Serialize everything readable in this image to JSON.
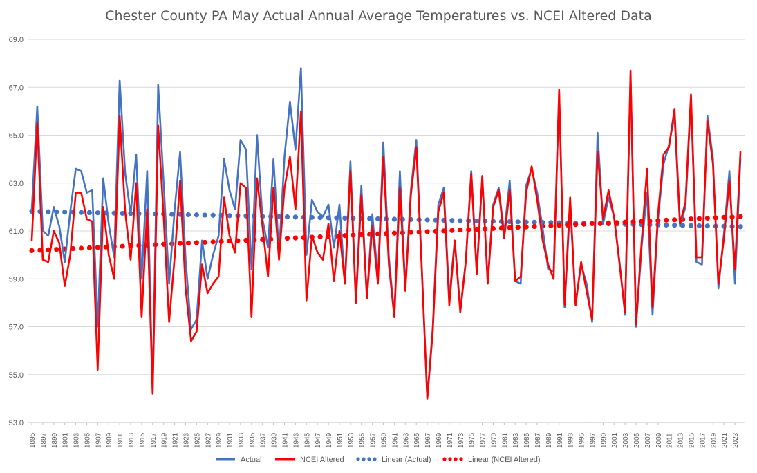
{
  "chart_data": {
    "type": "line",
    "title": "Chester County PA May Actual Annual Average Temperatures vs. NCEI Altered Data",
    "xlabel": "",
    "ylabel": "",
    "ylim": [
      53.0,
      69.0
    ],
    "yticks": [
      "53.0",
      "55.0",
      "57.0",
      "59.0",
      "61.0",
      "63.0",
      "65.0",
      "67.0",
      "69.0"
    ],
    "x_start": 1895,
    "x_end": 2024,
    "xticks": [
      "1895",
      "1897",
      "1899",
      "1901",
      "1903",
      "1905",
      "1907",
      "1909",
      "1911",
      "1913",
      "1915",
      "1917",
      "1919",
      "1921",
      "1923",
      "1925",
      "1927",
      "1929",
      "1931",
      "1933",
      "1935",
      "1937",
      "1939",
      "1941",
      "1943",
      "1945",
      "1947",
      "1949",
      "1951",
      "1953",
      "1955",
      "1957",
      "1959",
      "1961",
      "1963",
      "1965",
      "1967",
      "1969",
      "1971",
      "1973",
      "1975",
      "1977",
      "1979",
      "1981",
      "1983",
      "1985",
      "1987",
      "1989",
      "1991",
      "1993",
      "1995",
      "1997",
      "1999",
      "2001",
      "2003",
      "2005",
      "2007",
      "2009",
      "2011",
      "2013",
      "2015",
      "2017",
      "2019",
      "2021",
      "2023"
    ],
    "grid": "horizontal",
    "legend_position": "bottom",
    "colors": {
      "actual": "#4472C4",
      "altered": "#FF0000"
    },
    "series": [
      {
        "name": "Actual",
        "key": "actual",
        "style": "solid",
        "values": [
          61.9,
          66.2,
          61.0,
          60.8,
          62.0,
          61.2,
          59.7,
          61.8,
          63.6,
          63.5,
          62.6,
          62.7,
          57.0,
          63.2,
          61.3,
          59.9,
          67.3,
          63.4,
          61.7,
          64.2,
          59.0,
          63.5,
          54.3,
          67.1,
          63.0,
          58.8,
          61.9,
          64.3,
          59.8,
          56.9,
          57.3,
          60.6,
          59.0,
          60.0,
          60.8,
          64.0,
          62.7,
          61.9,
          64.8,
          64.4,
          59.4,
          65.0,
          61.5,
          60.3,
          64.0,
          60.0,
          64.1,
          66.4,
          64.4,
          67.8,
          60.0,
          62.3,
          61.8,
          61.6,
          62.1,
          60.3,
          62.1,
          58.8,
          63.9,
          58.1,
          62.9,
          58.2,
          61.7,
          59.0,
          64.7,
          59.9,
          57.5,
          63.5,
          58.6,
          62.7,
          64.8,
          59.5,
          54.0,
          57.0,
          62.1,
          62.8,
          58.2,
          60.6,
          57.7,
          59.7,
          63.5,
          59.3,
          63.2,
          58.9,
          62.1,
          62.8,
          60.9,
          63.1,
          58.9,
          58.8,
          62.9,
          63.6,
          62.6,
          61.1,
          59.4,
          59.3,
          66.8,
          57.8,
          62.1,
          58.0,
          59.6,
          58.8,
          57.2,
          65.1,
          61.3,
          62.4,
          61.6,
          59.7,
          57.5,
          67.5,
          57.0,
          60.3,
          62.6,
          57.5,
          61.5,
          63.8,
          64.6,
          65.8,
          61.2,
          62.0,
          66.5,
          59.7,
          59.6,
          65.8,
          64.0,
          58.6,
          60.9,
          63.5,
          58.8,
          64.0
        ]
      },
      {
        "name": "NCEI Altered",
        "key": "altered",
        "style": "solid",
        "values": [
          60.6,
          65.5,
          59.8,
          59.7,
          61.0,
          60.5,
          58.7,
          60.0,
          62.6,
          62.6,
          61.5,
          61.4,
          55.2,
          62.0,
          60.0,
          59.0,
          65.8,
          61.8,
          59.8,
          63.0,
          57.4,
          61.9,
          54.2,
          65.4,
          61.6,
          57.2,
          59.9,
          63.1,
          58.6,
          56.4,
          56.8,
          59.6,
          58.4,
          58.8,
          59.1,
          62.4,
          60.8,
          60.1,
          63.0,
          62.8,
          57.4,
          63.2,
          61.2,
          59.1,
          62.8,
          59.8,
          62.8,
          64.1,
          61.9,
          66.0,
          58.1,
          60.8,
          60.1,
          59.8,
          61.3,
          58.9,
          61.0,
          58.8,
          63.5,
          58.0,
          62.5,
          58.2,
          61.2,
          58.8,
          64.1,
          59.6,
          57.4,
          62.8,
          58.5,
          62.5,
          64.5,
          59.4,
          54.0,
          56.8,
          61.8,
          62.6,
          57.9,
          60.6,
          57.6,
          59.7,
          63.4,
          59.2,
          63.3,
          58.8,
          62.0,
          62.7,
          60.7,
          62.7,
          58.9,
          59.1,
          62.6,
          63.7,
          62.3,
          60.6,
          59.6,
          59.0,
          66.9,
          57.9,
          62.4,
          57.9,
          59.7,
          58.5,
          57.3,
          64.3,
          61.5,
          62.7,
          61.6,
          59.6,
          57.6,
          67.7,
          57.1,
          60.5,
          63.6,
          57.8,
          61.7,
          64.2,
          64.5,
          66.1,
          61.3,
          62.2,
          66.7,
          59.9,
          59.9,
          65.6,
          63.8,
          58.8,
          60.7,
          63.1,
          59.4,
          64.3
        ]
      },
      {
        "name": "Linear (Actual)",
        "key": "actual",
        "style": "dotted",
        "trend": [
          61.82,
          61.18
        ]
      },
      {
        "name": "Linear (NCEI Altered)",
        "key": "altered",
        "style": "dotted",
        "trend": [
          60.18,
          61.6
        ]
      }
    ]
  }
}
